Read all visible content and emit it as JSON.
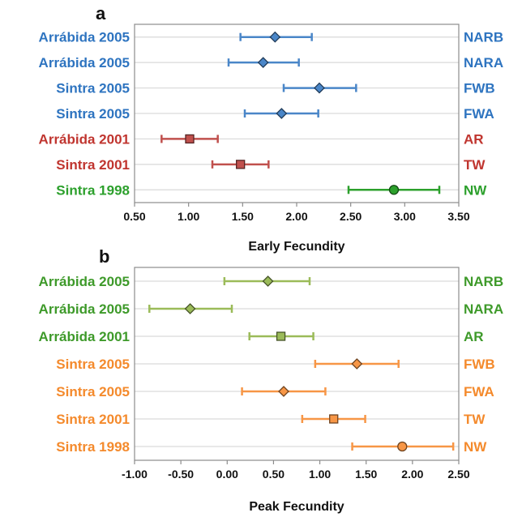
{
  "chart_data": [
    {
      "type": "scatter",
      "panel_label": "a",
      "xlabel": "Early Fecundity",
      "xlim": [
        0.5,
        3.5
      ],
      "xticks": [
        "0.50",
        "1.00",
        "1.50",
        "2.00",
        "2.50",
        "3.00",
        "3.50"
      ],
      "grid": true,
      "rows": [
        {
          "left_label": "Arrábida  2005",
          "right_label": "NARB",
          "value": 1.8,
          "low": 1.48,
          "high": 2.14,
          "marker": "diamond",
          "color": "#4a86c8",
          "label_color": "#2e74c0"
        },
        {
          "left_label": "Arrábida  2005",
          "right_label": "NARA",
          "value": 1.69,
          "low": 1.37,
          "high": 2.02,
          "marker": "diamond",
          "color": "#4a86c8",
          "label_color": "#2e74c0"
        },
        {
          "left_label": "Sintra  2005",
          "right_label": "FWB",
          "value": 2.21,
          "low": 1.88,
          "high": 2.55,
          "marker": "diamond",
          "color": "#4a86c8",
          "label_color": "#2e74c0"
        },
        {
          "left_label": "Sintra  2005",
          "right_label": "FWA",
          "value": 1.86,
          "low": 1.52,
          "high": 2.2,
          "marker": "diamond",
          "color": "#4a86c8",
          "label_color": "#2e74c0"
        },
        {
          "left_label": "Arrábida  2001",
          "right_label": "AR",
          "value": 1.01,
          "low": 0.75,
          "high": 1.27,
          "marker": "square",
          "color": "#c0504d",
          "label_color": "#c0352f"
        },
        {
          "left_label": "Sintra  2001",
          "right_label": "TW",
          "value": 1.48,
          "low": 1.22,
          "high": 1.74,
          "marker": "square",
          "color": "#c0504d",
          "label_color": "#c0352f"
        },
        {
          "left_label": "Sintra  1998",
          "right_label": "NW",
          "value": 2.9,
          "low": 2.48,
          "high": 3.32,
          "marker": "circle",
          "color": "#2ca02c",
          "label_color": "#2ca02c"
        }
      ]
    },
    {
      "type": "scatter",
      "panel_label": "b",
      "xlabel": "Peak Fecundity",
      "xlim": [
        -1.0,
        2.5
      ],
      "xticks": [
        "-1.00",
        "-0.50",
        "0.00",
        "0.50",
        "1.00",
        "1.50",
        "2.00",
        "2.50"
      ],
      "grid": true,
      "rows": [
        {
          "left_label": "Arrábida  2005",
          "right_label": "NARB",
          "value": 0.44,
          "low": -0.03,
          "high": 0.89,
          "marker": "diamond",
          "color": "#9bbb59",
          "label_color": "#3e9a2a"
        },
        {
          "left_label": "Arrábida  2005",
          "right_label": "NARA",
          "value": -0.4,
          "low": -0.84,
          "high": 0.05,
          "marker": "diamond",
          "color": "#9bbb59",
          "label_color": "#3e9a2a"
        },
        {
          "left_label": "Arrábida  2001",
          "right_label": "AR",
          "value": 0.58,
          "low": 0.24,
          "high": 0.93,
          "marker": "square",
          "color": "#9bbb59",
          "label_color": "#3e9a2a"
        },
        {
          "left_label": "Sintra  2005",
          "right_label": "FWB",
          "value": 1.4,
          "low": 0.95,
          "high": 1.85,
          "marker": "diamond",
          "color": "#f79646",
          "label_color": "#f48a2c"
        },
        {
          "left_label": "Sintra  2005",
          "right_label": "FWA",
          "value": 0.61,
          "low": 0.16,
          "high": 1.06,
          "marker": "diamond",
          "color": "#f79646",
          "label_color": "#f48a2c"
        },
        {
          "left_label": "Sintra  2001",
          "right_label": "TW",
          "value": 1.15,
          "low": 0.81,
          "high": 1.49,
          "marker": "square",
          "color": "#f79646",
          "label_color": "#f48a2c"
        },
        {
          "left_label": "Sintra  1998",
          "right_label": "NW",
          "value": 1.89,
          "low": 1.35,
          "high": 2.44,
          "marker": "circle",
          "color": "#f79646",
          "label_color": "#f48a2c"
        }
      ]
    }
  ]
}
